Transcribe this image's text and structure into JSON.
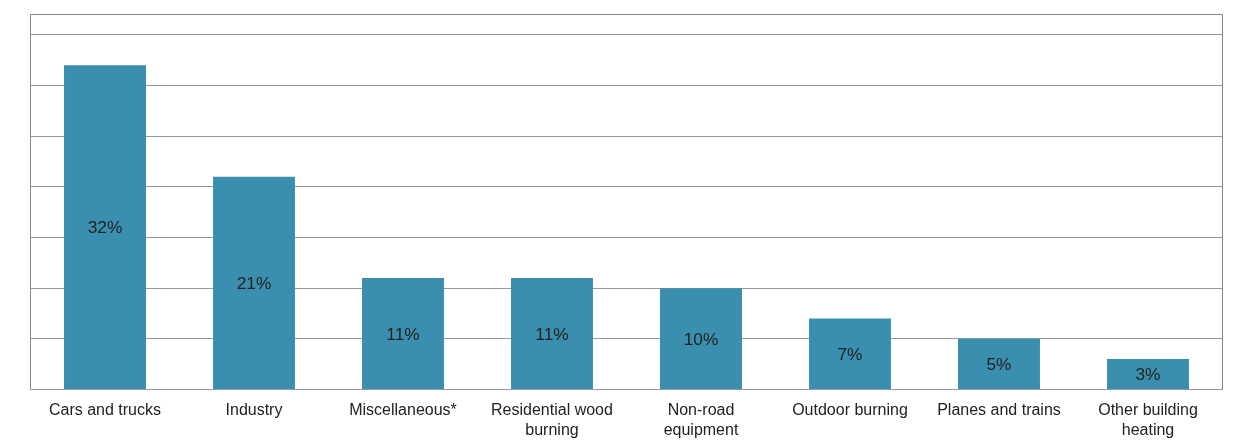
{
  "chart_data": {
    "type": "bar",
    "categories": [
      "Cars and trucks",
      "Industry",
      "Miscellaneous*",
      "Residential wood burning",
      "Non-road equipment",
      "Outdoor burning",
      "Planes and trains",
      "Other building heating"
    ],
    "values": [
      32,
      21,
      11,
      11,
      10,
      7,
      5,
      3
    ],
    "color": "#3a8fae",
    "value_labels": [
      "32%",
      "21%",
      "11%",
      "11%",
      "10%",
      "7%",
      "5%",
      "3%"
    ],
    "ylim": [
      0,
      37
    ],
    "yticks": [
      {
        "value": 0,
        "label": null
      },
      {
        "value": 5,
        "label": null
      },
      {
        "value": 10,
        "label": null
      },
      {
        "value": 15,
        "label": null
      },
      {
        "value": 20,
        "label": null
      },
      {
        "value": 25,
        "label": null
      },
      {
        "value": 30,
        "label": null
      },
      {
        "value": 35,
        "label": null
      }
    ],
    "tick_labels": "x",
    "grid": "y"
  }
}
